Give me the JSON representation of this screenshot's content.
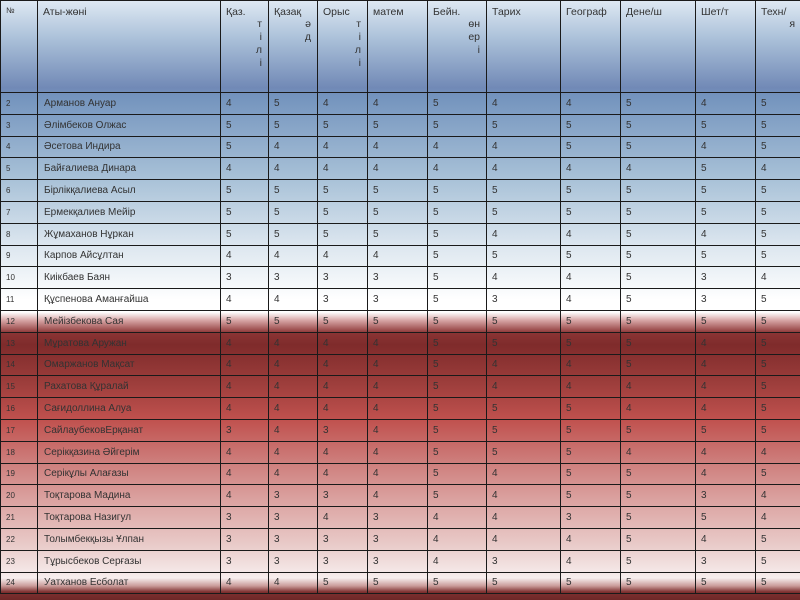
{
  "header": {
    "num": "№",
    "name": "Аты-жөні",
    "subjects": [
      {
        "top": "Қаз.",
        "vertical": [
          "т",
          "і",
          "л",
          "і"
        ]
      },
      {
        "top": "Қазақ",
        "vertical": [
          "ә",
          "д"
        ]
      },
      {
        "top": "Орыс",
        "vertical": [
          "т",
          "і",
          "л",
          "і"
        ]
      },
      {
        "top": "матем",
        "vertical": []
      },
      {
        "top": "Бейн.",
        "vertical": [
          "өн",
          "ер",
          "і"
        ]
      },
      {
        "top": "Тарих",
        "vertical": []
      },
      {
        "top": "Географ",
        "vertical": []
      },
      {
        "top": "Дене/ш",
        "vertical": []
      },
      {
        "top": "Шет/т",
        "vertical": []
      },
      {
        "top": "Техн/",
        "vertical": [
          "я"
        ]
      }
    ]
  },
  "rows": [
    {
      "num": "2",
      "name": "Арманов Ануар",
      "grades": [
        "4",
        "5",
        "4",
        "4",
        "5",
        "4",
        "4",
        "5",
        "4",
        "5"
      ]
    },
    {
      "num": "3",
      "name": "Әлімбеков  Олжас",
      "grades": [
        "5",
        "5",
        "5",
        "5",
        "5",
        "5",
        "5",
        "5",
        "5",
        "5"
      ]
    },
    {
      "num": "4",
      "name": "Әсетова Индира",
      "grades": [
        "5",
        "4",
        "4",
        "4",
        "4",
        "4",
        "5",
        "5",
        "4",
        "5"
      ]
    },
    {
      "num": "5",
      "name": "Байғалиева Динара",
      "grades": [
        "4",
        "4",
        "4",
        "4",
        "4",
        "4",
        "4",
        "4",
        "5",
        "4"
      ]
    },
    {
      "num": "6",
      "name": "Бірлікқалиева Асыл",
      "grades": [
        "5",
        "5",
        "5",
        "5",
        "5",
        "5",
        "5",
        "5",
        "5",
        "5"
      ]
    },
    {
      "num": "7",
      "name": "Ермекқалиев Мейір",
      "grades": [
        "5",
        "5",
        "5",
        "5",
        "5",
        "5",
        "5",
        "5",
        "5",
        "5"
      ]
    },
    {
      "num": "8",
      "name": "Жұмаханов  Нұркан",
      "grades": [
        "5",
        "5",
        "5",
        "5",
        "5",
        "4",
        "4",
        "5",
        "4",
        "5"
      ]
    },
    {
      "num": "9",
      "name": "Карпов Айсұлтан",
      "grades": [
        "4",
        "4",
        "4",
        "4",
        "5",
        "5",
        "5",
        "5",
        "5",
        "5"
      ]
    },
    {
      "num": "10",
      "name": "Киікбаев  Баян",
      "grades": [
        "3",
        "3",
        "3",
        "3",
        "5",
        "4",
        "4",
        "5",
        "3",
        "4"
      ]
    },
    {
      "num": "11",
      "name": "Құспенова Аманғайша",
      "grades": [
        "4",
        "4",
        "3",
        "3",
        "5",
        "3",
        "4",
        "5",
        "3",
        "5"
      ]
    },
    {
      "num": "12",
      "name": "Мейізбекова Сая",
      "grades": [
        "5",
        "5",
        "5",
        "5",
        "5",
        "5",
        "5",
        "5",
        "5",
        "5"
      ]
    },
    {
      "num": "13",
      "name": "Мұратова Аружан",
      "grades": [
        "4",
        "4",
        "4",
        "4",
        "5",
        "5",
        "5",
        "5",
        "4",
        "5"
      ]
    },
    {
      "num": "14",
      "name": "Омаржанов Мақсат",
      "grades": [
        "4",
        "4",
        "4",
        "4",
        "5",
        "4",
        "4",
        "5",
        "4",
        "5"
      ]
    },
    {
      "num": "15",
      "name": "Рахатова Құралай",
      "grades": [
        "4",
        "4",
        "4",
        "4",
        "5",
        "4",
        "4",
        "4",
        "4",
        "5"
      ]
    },
    {
      "num": "16",
      "name": "Сағидоллина Алуа",
      "grades": [
        "4",
        "4",
        "4",
        "4",
        "5",
        "5",
        "5",
        "4",
        "4",
        "5"
      ]
    },
    {
      "num": "17",
      "name": "СайлаубековЕрқанат",
      "grades": [
        "3",
        "4",
        "3",
        "4",
        "5",
        "5",
        "5",
        "5",
        "5",
        "5"
      ]
    },
    {
      "num": "18",
      "name": "Серікқазина Әйгерім",
      "grades": [
        "4",
        "4",
        "4",
        "4",
        "5",
        "5",
        "5",
        "4",
        "4",
        "4"
      ]
    },
    {
      "num": "19",
      "name": "Серікұлы Алағазы",
      "grades": [
        "4",
        "4",
        "4",
        "4",
        "5",
        "4",
        "5",
        "5",
        "4",
        "5"
      ]
    },
    {
      "num": "20",
      "name": "Тоқтарова Мадина",
      "grades": [
        "4",
        "3",
        "3",
        "4",
        "5",
        "4",
        "5",
        "5",
        "3",
        "4"
      ]
    },
    {
      "num": "21",
      "name": "Тоқтарова Назигул",
      "grades": [
        "3",
        "3",
        "4",
        "3",
        "4",
        "4",
        "3",
        "5",
        "5",
        "4"
      ]
    },
    {
      "num": "22",
      "name": "Толымбекқызы Ұлпан",
      "grades": [
        "3",
        "3",
        "3",
        "3",
        "4",
        "4",
        "4",
        "5",
        "4",
        "5"
      ]
    },
    {
      "num": "23",
      "name": "Тұрысбеков Серғазы",
      "grades": [
        "3",
        "3",
        "3",
        "3",
        "4",
        "3",
        "4",
        "5",
        "3",
        "5"
      ]
    },
    {
      "num": "24",
      "name": "Уатханов Есболат",
      "grades": [
        "4",
        "4",
        "5",
        "5",
        "5",
        "5",
        "5",
        "5",
        "5",
        "5"
      ]
    }
  ]
}
